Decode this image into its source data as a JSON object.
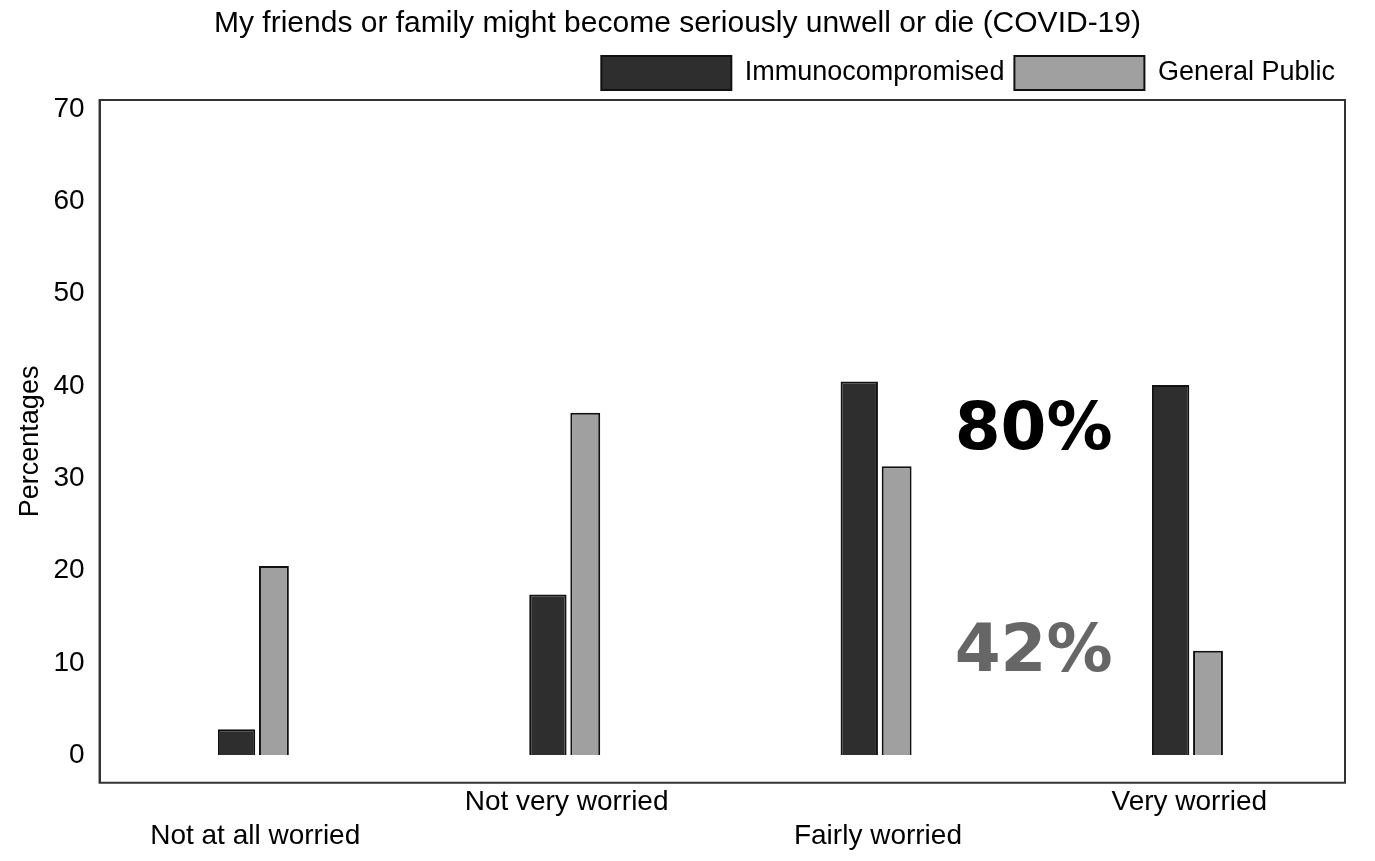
{
  "chart_data": {
    "type": "bar",
    "title": "My friends or family might become seriously unwell or die (COVID-19)",
    "ylabel": "Percentages",
    "categories": [
      "Not at all worried",
      "Not very worried",
      "Fairly worried",
      "Very worried"
    ],
    "series": [
      {
        "name": "Immunocompromised",
        "color": "#2e2e2e",
        "values": [
          2.8,
          17.4,
          40.5,
          40.1
        ]
      },
      {
        "name": "General Public",
        "color": "#a0a0a0",
        "values": [
          20.5,
          37.1,
          31.3,
          11.3
        ]
      }
    ],
    "ylim": [
      -3,
      71
    ],
    "yticks": [
      0,
      10,
      20,
      30,
      40,
      50,
      60,
      70
    ],
    "grid": false,
    "legend": "top right",
    "annotations": [
      "80%",
      "42%"
    ]
  }
}
